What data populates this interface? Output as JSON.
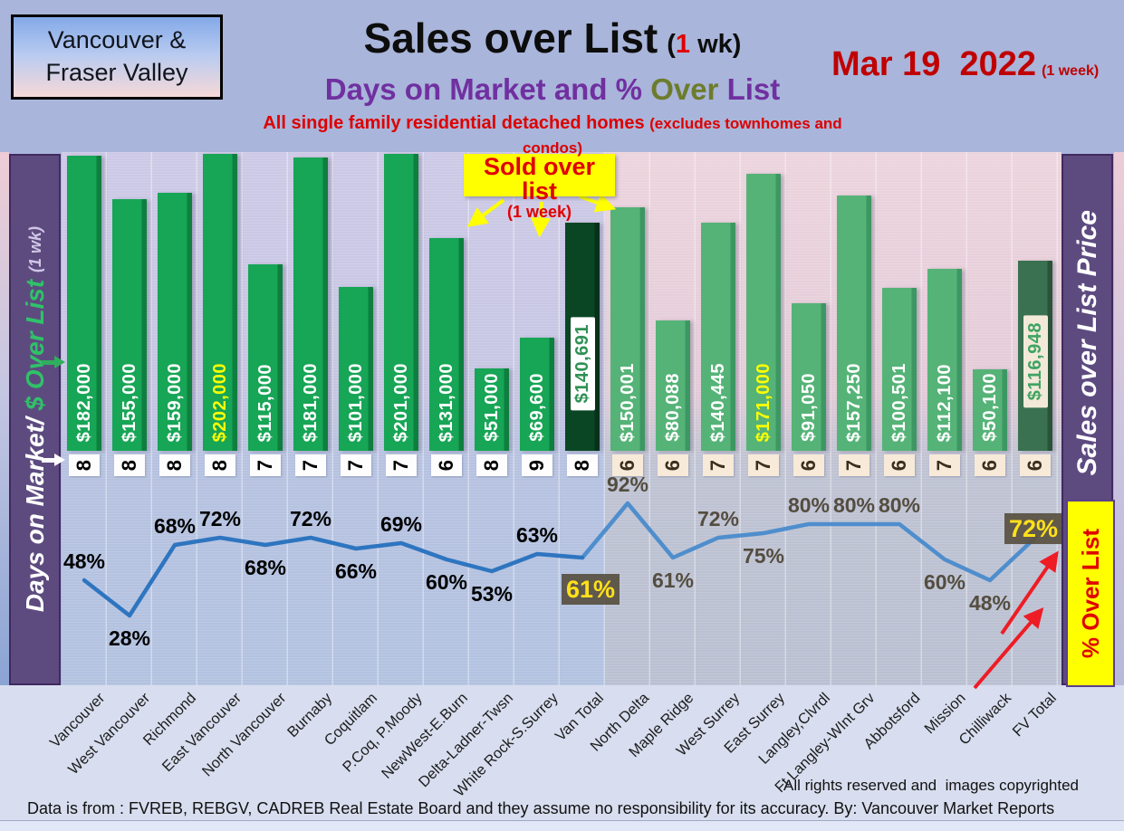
{
  "badge": {
    "line1": "Vancouver &",
    "line2": "Fraser Valley"
  },
  "header": {
    "title": "Sales over List",
    "title_note_open": "(",
    "title_note_red": "1",
    "title_note_rest": " wk)",
    "subtitle_part1": "Days on Market and % ",
    "subtitle_part2": "Over",
    "subtitle_part3": " List",
    "tagline": "All single family residential detached homes ",
    "tagline_note": "(excludes townhomes and condos)",
    "date": "Mar 19  2022",
    "date_note": "(1 week)"
  },
  "left_band": {
    "label_main": "Days on Market/",
    "label_green": " $ Over List ",
    "label_note": "(1 wk)"
  },
  "right_band": {
    "label": "Sales over List Price"
  },
  "over_list_tag": "% Over List",
  "callout": {
    "title": "Sold over list",
    "subtitle": "(1 week)"
  },
  "footer": {
    "rights": "All rights reserved and  images copyrighted",
    "source": "Data is from : FVREB, REBGV, CADREB Real Estate Board and they assume no responsibility for its accuracy. By: Vancouver Market Reports"
  },
  "chart_data": {
    "type": "bar+line",
    "title": "Sales over List (1 wk) — Days on Market and % Over List",
    "categories": [
      "Vancouver",
      "West Vancouver",
      "Richmond",
      "East Vancouver",
      "North Vancouver",
      "Burnaby",
      "Coquitlam",
      "P.Coq, P.Moody",
      "NewWest-E.Burn",
      "Delta-Ladner-Twsn",
      "White Rock-S.Surrey",
      "Van Total",
      "North Delta",
      "Maple Ridge",
      "West Surrey",
      "East Surrey",
      "Langley,Clvrdl",
      "Ft Langley-WInt Grv",
      "Abbotsford",
      "Mission",
      "Chilliwack",
      "FV Total"
    ],
    "series": [
      {
        "name": "$ Over List (1 wk)",
        "type": "bar",
        "values": [
          182000,
          155000,
          159000,
          202000,
          115000,
          181000,
          101000,
          201000,
          131000,
          51000,
          69600,
          140691,
          150001,
          80088,
          140445,
          171000,
          91050,
          157250,
          100501,
          112100,
          50100,
          116948
        ],
        "labels": [
          "$182,000",
          "$155,000",
          "$159,000",
          "$202,000",
          "$115,000",
          "$181,000",
          "$101,000",
          "$201,000",
          "$131,000",
          "$51,000",
          "$69,600",
          "$140,691",
          "$150,001",
          "$80,088",
          "$140,445",
          "$171,000",
          "$91,050",
          "$157,250",
          "$100,501",
          "$112,100",
          "$50,100",
          "$116,948"
        ]
      },
      {
        "name": "Days on Market",
        "type": "data-labels",
        "values": [
          8,
          8,
          8,
          8,
          7,
          7,
          7,
          7,
          6,
          8,
          9,
          8,
          6,
          6,
          7,
          7,
          6,
          7,
          6,
          7,
          6,
          6
        ]
      },
      {
        "name": "% Over List",
        "type": "line",
        "values": [
          48,
          28,
          68,
          72,
          68,
          72,
          66,
          69,
          60,
          53,
          63,
          61,
          92,
          61,
          72,
          75,
          80,
          80,
          80,
          60,
          48,
          72
        ]
      }
    ],
    "bar_axis_max": 183000,
    "line_axis": {
      "min": 0,
      "max": 100
    },
    "regions": {
      "vancouver_indices": [
        0,
        11
      ],
      "fraser_valley_indices": [
        12,
        21
      ]
    },
    "total_indices": [
      11,
      21
    ],
    "yellow_label_indices": [
      3,
      15
    ],
    "pct_label_side": [
      "above",
      "below",
      "above",
      "above",
      "below",
      "above",
      "below",
      "above",
      "below",
      "below",
      "above",
      "box",
      "above",
      "below",
      "above",
      "below",
      "above",
      "above",
      "above",
      "below",
      "below",
      "box"
    ],
    "legend_position": "none",
    "grid": "vertical-category-lines"
  },
  "colors": {
    "van_bar": "#17a556",
    "fv_bar": "#55b377",
    "van_total_bar": "#0a4623",
    "fv_total_bar": "#3a7150",
    "van_bar_edge": "#0e7f3e",
    "fv_bar_edge": "#3d9763",
    "van_total_edge": "#06311a",
    "fv_total_edge": "#2a5339",
    "line_van": "#2e75c0",
    "line_fv": "#4f8ecd",
    "highlight_box_bg": "#585142",
    "highlight_text": "#ffe11a",
    "callout_yellow": "#ffff00",
    "red": "#e00000",
    "band_purple": "#5d4b80",
    "title_purple": "#7030a0",
    "title_olive": "#6d7c2c"
  }
}
